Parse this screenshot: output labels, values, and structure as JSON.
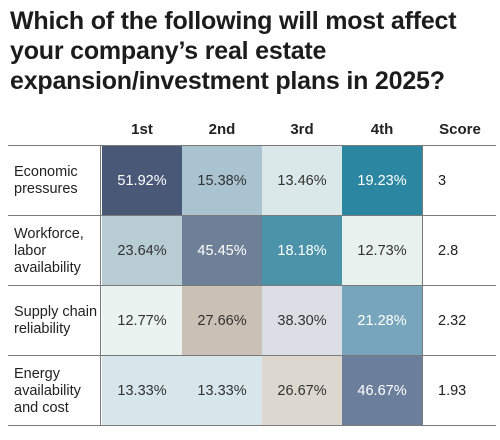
{
  "title": "Which of the following will most affect your company’s real estate expansion/investment plans in 2025?",
  "chart_data": {
    "type": "heatmap",
    "title": "Which of the following will most affect your company’s real estate expansion/investment plans in 2025?",
    "columns": [
      "1st",
      "2nd",
      "3rd",
      "4th",
      "Score"
    ],
    "rows": [
      {
        "label": "Economic pressures",
        "values": [
          "51.92%",
          "15.38%",
          "13.46%",
          "19.23%"
        ],
        "score": "3",
        "colors": [
          "#4a5878",
          "#a9c3d0",
          "#dae8ea",
          "#2b86a2"
        ],
        "text_colors": [
          "#ffffff",
          "#333333",
          "#333333",
          "#ffffff"
        ]
      },
      {
        "label": "Workforce, labor availability",
        "values": [
          "23.64%",
          "45.45%",
          "18.18%",
          "12.73%"
        ],
        "score": "2.8",
        "colors": [
          "#b7cdd3",
          "#6e8098",
          "#4a93a8",
          "#e9f1ef"
        ],
        "text_colors": [
          "#333333",
          "#ffffff",
          "#ffffff",
          "#333333"
        ]
      },
      {
        "label": "Supply chain reliability",
        "values": [
          "12.77%",
          "27.66%",
          "38.30%",
          "21.28%"
        ],
        "score": "2.32",
        "colors": [
          "#eaf3f0",
          "#cbc0b5",
          "#dbdee5",
          "#77a5bc"
        ],
        "text_colors": [
          "#333333",
          "#333333",
          "#333333",
          "#ffffff"
        ]
      },
      {
        "label": "Energy availability and cost",
        "values": [
          "13.33%",
          "13.33%",
          "26.67%",
          "46.67%"
        ],
        "score": "1.93",
        "colors": [
          "#d6e6eb",
          "#d6e6eb",
          "#dcd8d0",
          "#6b7e9b"
        ],
        "text_colors": [
          "#333333",
          "#333333",
          "#333333",
          "#ffffff"
        ]
      }
    ]
  }
}
